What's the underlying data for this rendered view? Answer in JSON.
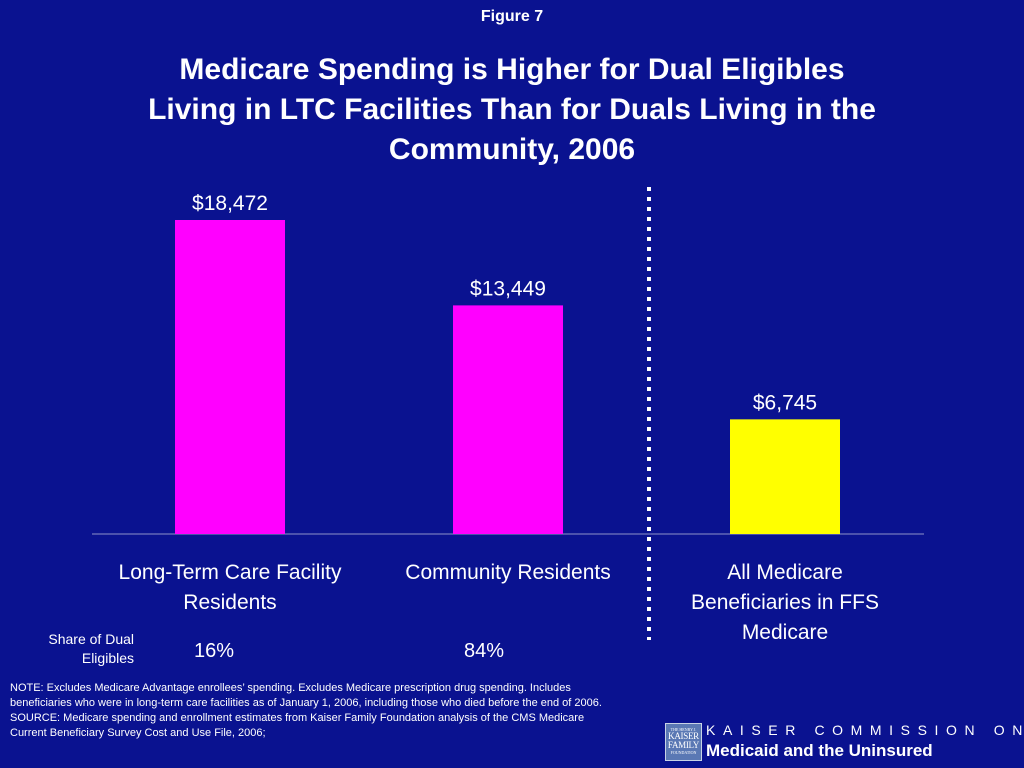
{
  "figure_label": "Figure 7",
  "title_lines": [
    "Medicare Spending is Higher for Dual Eligibles",
    "Living in LTC Facilities Than for Duals Living in the",
    "Community, 2006"
  ],
  "chart_data": {
    "type": "bar",
    "title": "Medicare Spending is Higher for Dual Eligibles Living in LTC Facilities Than for Duals Living in the Community, 2006",
    "categories": [
      [
        "Long-Term Care Facility",
        "Residents"
      ],
      [
        "Community Residents"
      ],
      [
        "All Medicare",
        "Beneficiaries in FFS",
        "Medicare"
      ]
    ],
    "values": [
      18472,
      13449,
      6745
    ],
    "value_labels": [
      "$18,472",
      "$13,449",
      "$6,745"
    ],
    "bar_colors": [
      "#ff00ff",
      "#ff00ff",
      "#ffff00"
    ],
    "ylim": [
      0,
      20000
    ],
    "grid": false,
    "separator": "dotted vertical line between the second and third bars"
  },
  "share": {
    "label_lines": [
      "Share of Dual",
      "Eligibles"
    ],
    "values": [
      "16%",
      "84%"
    ]
  },
  "notes": [
    "NOTE: Excludes Medicare Advantage enrollees’ spending. Excludes Medicare  prescription drug spending. Includes",
    "beneficiaries who were in long-term care facilities as of January 1, 2006, including those who died before the end of 2006.",
    "SOURCE: Medicare spending and enrollment estimates from Kaiser Family Foundation analysis of the CMS Medicare",
    "Current Beneficiary Survey Cost and Use File, 2006;"
  ],
  "footer": {
    "logo_lines": [
      "THE HENRY J.",
      "KAISER",
      "FAMILY",
      "FOUNDATION"
    ],
    "commission_top": "KAISER COMMISSION ON",
    "commission_bottom": "Medicaid and the Uninsured"
  },
  "colors": {
    "background": "#0a1290",
    "text": "#ffffff",
    "bar_primary": "#ff00ff",
    "bar_comparison": "#ffff00"
  }
}
